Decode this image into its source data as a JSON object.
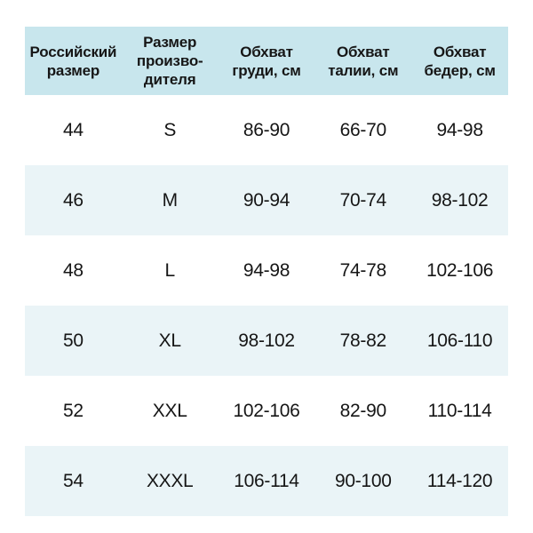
{
  "chart_data": {
    "type": "table",
    "title": "",
    "columns": [
      "Российский размер",
      "Размер производителя",
      "Обхват груди, см",
      "Обхват талии, см",
      "Обхват бедер, см"
    ],
    "rows": [
      [
        "44",
        "S",
        "86-90",
        "66-70",
        "94-98"
      ],
      [
        "46",
        "M",
        "90-94",
        "70-74",
        "98-102"
      ],
      [
        "48",
        "L",
        "94-98",
        "74-78",
        "102-106"
      ],
      [
        "50",
        "XL",
        "98-102",
        "78-82",
        "106-110"
      ],
      [
        "52",
        "XXL",
        "102-106",
        "82-90",
        "110-114"
      ],
      [
        "54",
        "XXXL",
        "106-114",
        "90-100",
        "114-120"
      ]
    ],
    "layout": {
      "gridlines": "none",
      "zebra_striping": true,
      "header_position": "top"
    }
  },
  "header_display": [
    "Российский\nразмер",
    "Размер\nпроизво-\nдителя",
    "Обхват\nгруди, см",
    "Обхват\nталии, см",
    "Обхват\nбедер, см"
  ],
  "colors": {
    "header_bg": "#c8e6ed",
    "zebra_bg": "#eaf4f7",
    "text": "#161616"
  }
}
